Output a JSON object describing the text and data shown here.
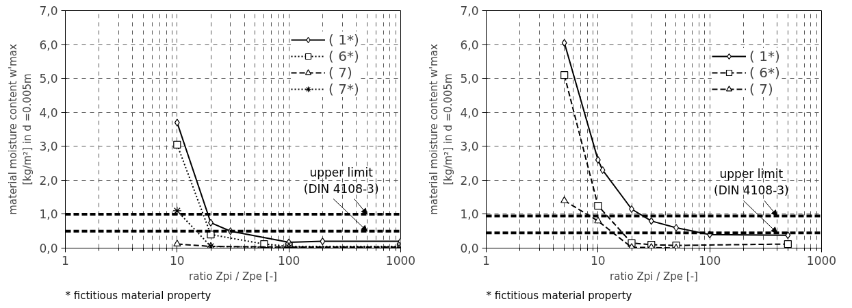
{
  "chart_data": [
    {
      "type": "line",
      "ylabel": "material moisture content w'max\n[kg/m²] in d =0.005m",
      "xlabel": "ratio Zpi / Zpe [-]",
      "log": "x",
      "xlim": [
        1,
        1000
      ],
      "xticks": [
        1,
        10,
        100,
        1000
      ],
      "ylim": [
        0,
        7
      ],
      "yticks": [
        {
          "value": 0,
          "label": "0,0"
        },
        {
          "value": 1,
          "label": "1,0"
        },
        {
          "value": 2,
          "label": "2,0"
        },
        {
          "value": 3,
          "label": "3,0"
        },
        {
          "value": 4,
          "label": "4,0"
        },
        {
          "value": 5,
          "label": "5,0"
        },
        {
          "value": 6,
          "label": "6,0"
        },
        {
          "value": 7,
          "label": "7,0"
        }
      ],
      "grid": true,
      "legend": "top right",
      "series": [
        {
          "name": "( 1*)",
          "color": "#000000",
          "marker": "diamond",
          "line_style": "solid",
          "x": [
            10,
            20,
            30,
            100,
            200,
            1000
          ],
          "values": [
            3.7,
            0.75,
            0.5,
            0.17,
            0.2,
            0.2
          ]
        },
        {
          "name": "( 6*)",
          "color": "#000000",
          "marker": "square",
          "line_style": "dotted",
          "x": [
            10,
            20,
            60,
            100,
            1000
          ],
          "values": [
            3.05,
            0.4,
            0.12,
            0.05,
            0.05
          ]
        },
        {
          "name": "( 7)",
          "color": "#000000",
          "marker": "triangle",
          "line_style": "dashed",
          "x": [
            10,
            20,
            100,
            1000
          ],
          "values": [
            0.12,
            0.05,
            0.03,
            0.03
          ]
        },
        {
          "name": "( 7*)",
          "color": "#000000",
          "marker": "cross",
          "line_style": "dotted",
          "x": [
            10,
            20,
            100,
            1000
          ],
          "values": [
            1.1,
            0.05,
            0.02,
            0.02
          ]
        }
      ],
      "ref_lines": [
        {
          "axis": "y",
          "value": 1.0,
          "color": "#000000",
          "line_style": "dashed"
        },
        {
          "axis": "y",
          "value": 0.5,
          "color": "#000000",
          "line_style": "dashed"
        }
      ],
      "annotations": [
        {
          "text": "upper limit\n(DIN 4108-3)",
          "x": 500,
          "y": 1.0
        },
        "*  fictitious material property"
      ]
    },
    {
      "type": "line",
      "ylabel": "material moisture content w'max\n[kg/m²] in d =0.005m",
      "xlabel": "ratio Zpi / Zpe [-]",
      "log": "x",
      "xlim": [
        1,
        1000
      ],
      "xticks": [
        1,
        10,
        100,
        1000
      ],
      "ylim": [
        0,
        7
      ],
      "yticks": [
        {
          "value": 0,
          "label": "0,0"
        },
        {
          "value": 1,
          "label": "1,0"
        },
        {
          "value": 2,
          "label": "2,0"
        },
        {
          "value": 3,
          "label": "3,0"
        },
        {
          "value": 4,
          "label": "4,0"
        },
        {
          "value": 5,
          "label": "5,0"
        },
        {
          "value": 6,
          "label": "6,0"
        },
        {
          "value": 7,
          "label": "7,0"
        }
      ],
      "grid": true,
      "legend": "top right",
      "series": [
        {
          "name": "( 1*)",
          "color": "#000000",
          "marker": "diamond",
          "line_style": "solid",
          "x": [
            5,
            10,
            11,
            20,
            30,
            50,
            100,
            500
          ],
          "values": [
            6.05,
            2.6,
            2.3,
            1.15,
            0.8,
            0.6,
            0.4,
            0.38
          ]
        },
        {
          "name": "( 6*)",
          "color": "#000000",
          "marker": "square",
          "line_style": "dashed",
          "x": [
            5,
            10,
            20,
            30,
            50,
            500
          ],
          "values": [
            5.1,
            1.25,
            0.15,
            0.1,
            0.08,
            0.12
          ]
        },
        {
          "name": "( 7)",
          "color": "#000000",
          "marker": "triangle",
          "line_style": "dashed",
          "x": [
            5,
            10,
            20,
            30,
            50
          ],
          "values": [
            1.4,
            0.8,
            0.02,
            0.02,
            0.0
          ]
        }
      ],
      "ref_lines": [
        {
          "axis": "y",
          "value": 0.95,
          "color": "#000000",
          "line_style": "dashed"
        },
        {
          "axis": "y",
          "value": 0.45,
          "color": "#000000",
          "line_style": "dashed"
        }
      ],
      "annotations": [
        {
          "text": "upper limit\n(DIN 4108-3)",
          "x": 400,
          "y": 0.95
        },
        "*  fictitious material property"
      ]
    }
  ]
}
